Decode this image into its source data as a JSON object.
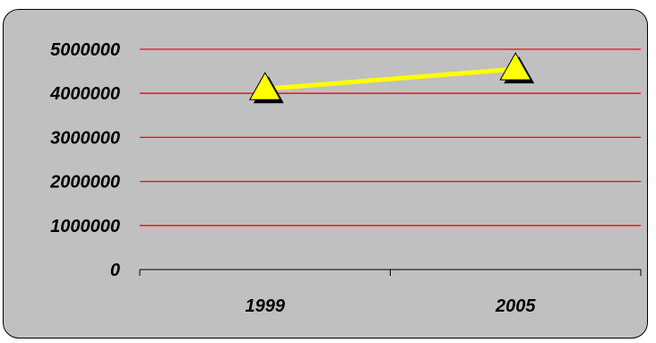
{
  "colors": {
    "plot_background": "#c0c0c0",
    "gridline": "#ff0000",
    "series_line": "#ffff00",
    "marker_fill": "#ffff00",
    "marker_shadow": "#000000"
  },
  "chart_data": {
    "type": "line",
    "title": "",
    "xlabel": "",
    "ylabel": "",
    "categories": [
      "1999",
      "2005"
    ],
    "series": [
      {
        "values": [
          4100000,
          4550000
        ],
        "marker": "triangle"
      }
    ],
    "ylim": [
      0,
      5000000
    ],
    "yticks": [
      0,
      1000000,
      2000000,
      3000000,
      4000000,
      5000000
    ],
    "ytick_labels": [
      "0",
      "1000000",
      "2000000",
      "3000000",
      "4000000",
      "5000000"
    ],
    "grid": true,
    "legend": "none"
  }
}
